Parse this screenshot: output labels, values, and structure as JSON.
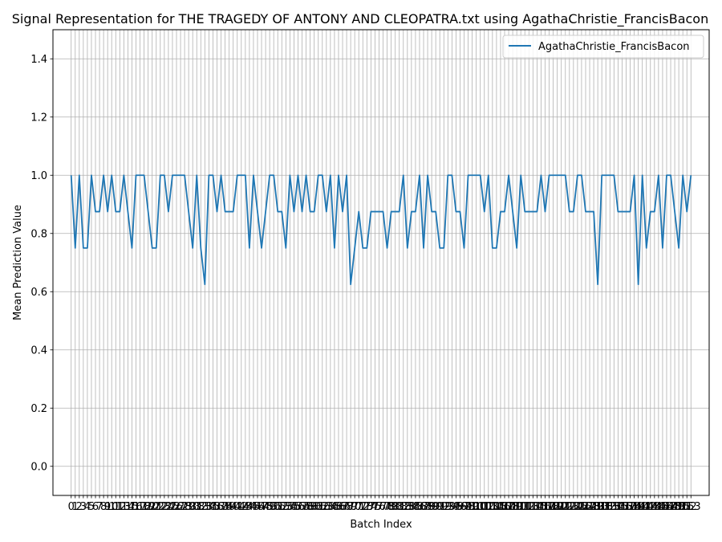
{
  "chart_data": {
    "type": "line",
    "title": "Signal Representation for THE TRAGEDY OF ANTONY AND CLEOPATRA.txt using AgathaChristie_FrancisBacon",
    "xlabel": "Batch Index",
    "ylabel": "Mean Prediction Value",
    "xlim": [
      -4.5,
      157.5
    ],
    "ylim": [
      -0.1,
      1.5
    ],
    "yticks": [
      0.0,
      0.2,
      0.4,
      0.6,
      0.8,
      1.0,
      1.2,
      1.4
    ],
    "grid": true,
    "legend_position": "top-right",
    "color": "#1f77b4",
    "x": [
      0,
      1,
      2,
      3,
      4,
      5,
      6,
      7,
      8,
      9,
      10,
      11,
      12,
      13,
      14,
      15,
      16,
      17,
      18,
      19,
      20,
      21,
      22,
      23,
      24,
      25,
      26,
      27,
      28,
      29,
      30,
      31,
      32,
      33,
      34,
      35,
      36,
      37,
      38,
      39,
      40,
      41,
      42,
      43,
      44,
      45,
      46,
      47,
      48,
      49,
      50,
      51,
      52,
      53,
      54,
      55,
      56,
      57,
      58,
      59,
      60,
      61,
      62,
      63,
      64,
      65,
      66,
      67,
      68,
      69,
      70,
      71,
      72,
      73,
      74,
      75,
      76,
      77,
      78,
      79,
      80,
      81,
      82,
      83,
      84,
      85,
      86,
      87,
      88,
      89,
      90,
      91,
      92,
      93,
      94,
      95,
      96,
      97,
      98,
      99,
      100,
      101,
      102,
      103,
      104,
      105,
      106,
      107,
      108,
      109,
      110,
      111,
      112,
      113,
      114,
      115,
      116,
      117,
      118,
      119,
      120,
      121,
      122,
      123,
      124,
      125,
      126,
      127,
      128,
      129,
      130,
      131,
      132,
      133,
      134,
      135,
      136,
      137,
      138,
      139,
      140,
      141,
      142,
      143,
      144,
      145,
      146,
      147,
      148,
      149,
      150,
      151,
      152,
      153
    ],
    "series": [
      {
        "name": "AgathaChristie_FrancisBacon",
        "values": [
          1.0,
          0.75,
          1.0,
          0.75,
          0.75,
          1.0,
          0.875,
          0.875,
          1.0,
          0.875,
          1.0,
          0.875,
          0.875,
          1.0,
          0.875,
          0.75,
          1.0,
          1.0,
          1.0,
          0.875,
          0.75,
          0.75,
          1.0,
          1.0,
          0.875,
          1.0,
          1.0,
          1.0,
          1.0,
          0.875,
          0.75,
          1.0,
          0.75,
          0.625,
          1.0,
          1.0,
          0.875,
          1.0,
          0.875,
          0.875,
          0.875,
          1.0,
          1.0,
          1.0,
          0.75,
          1.0,
          0.875,
          0.75,
          0.875,
          1.0,
          1.0,
          0.875,
          0.875,
          0.75,
          1.0,
          0.875,
          1.0,
          0.875,
          1.0,
          0.875,
          0.875,
          1.0,
          1.0,
          0.875,
          1.0,
          0.75,
          1.0,
          0.875,
          1.0,
          0.625,
          0.75,
          0.875,
          0.75,
          0.75,
          0.875,
          0.875,
          0.875,
          0.875,
          0.75,
          0.875,
          0.875,
          0.875,
          1.0,
          0.75,
          0.875,
          0.875,
          1.0,
          0.75,
          1.0,
          0.875,
          0.875,
          0.75,
          0.75,
          1.0,
          1.0,
          0.875,
          0.875,
          0.75,
          1.0,
          1.0,
          1.0,
          1.0,
          0.875,
          1.0,
          0.75,
          0.75,
          0.875,
          0.875,
          1.0,
          0.875,
          0.75,
          1.0,
          0.875,
          0.875,
          0.875,
          0.875,
          1.0,
          0.875,
          1.0,
          1.0,
          1.0,
          1.0,
          1.0,
          0.875,
          0.875,
          1.0,
          1.0,
          0.875,
          0.875,
          0.875,
          0.625,
          1.0,
          1.0,
          1.0,
          1.0,
          0.875,
          0.875,
          0.875,
          0.875,
          1.0,
          0.625,
          1.0,
          0.75,
          0.875,
          0.875,
          1.0,
          0.75,
          1.0,
          1.0,
          0.875,
          0.75,
          1.0,
          0.875,
          1.0
        ]
      }
    ]
  }
}
